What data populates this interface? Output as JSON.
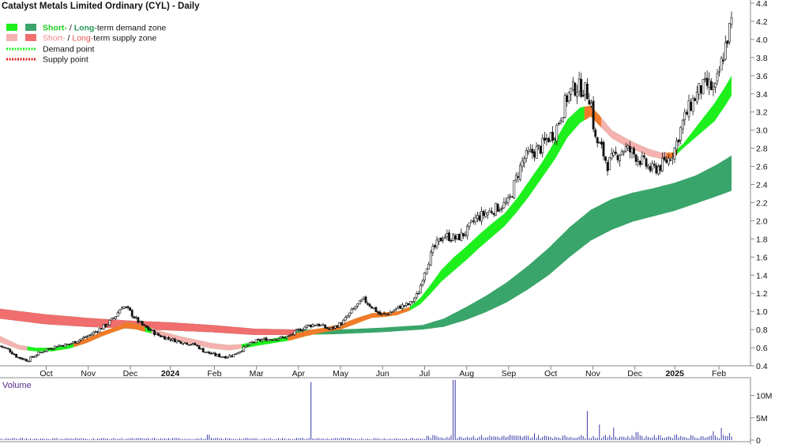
{
  "header": {
    "title": "Catalyst Metals Limited Ordinary (CYL) - Daily"
  },
  "legend": {
    "items": [
      {
        "label_short": "Short-",
        "label_sep": " / ",
        "label_long": "Long-",
        "label_tail": "term demand zone",
        "swatch_short": "#1ef01e",
        "swatch_long": "#3aa56a"
      },
      {
        "label_short": "Short-",
        "label_sep": " / ",
        "label_long": "Long-",
        "label_tail": "term supply zone",
        "swatch_short": "#f6b1b1",
        "swatch_long": "#f06e6e"
      }
    ],
    "demand_point": "Demand point",
    "supply_point": "Supply point",
    "demand_point_color": "#1ef01e",
    "supply_point_color": "#e02020"
  },
  "volume_panel": {
    "label": "Volume",
    "label_color": "#5a2a8a",
    "ticks": [
      "10M",
      "5M",
      "0"
    ],
    "tick_values": [
      10000000,
      5000000,
      0
    ],
    "ylim": [
      0,
      14000000
    ]
  },
  "colors": {
    "short_demand": "#1ef01e",
    "long_demand": "#3aa56a",
    "short_supply": "#f6b1b1",
    "long_supply": "#f06e6e",
    "transition": "#f27a2a",
    "candle": "#111111",
    "volume_bar": "#3a3aa8"
  },
  "chart_data": {
    "type": "candlestick",
    "title": "Catalyst Metals Limited Ordinary (CYL) - Daily",
    "ylim": [
      0.4,
      4.4
    ],
    "y_ticks": [
      "4.4",
      "4.2",
      "4.0",
      "3.8",
      "3.6",
      "3.4",
      "3.2",
      "3.0",
      "2.8",
      "2.6",
      "2.4",
      "2.2",
      "2.0",
      "1.8",
      "1.6",
      "1.4",
      "1.2",
      "1.0",
      "0.8",
      "0.6",
      "0.4"
    ],
    "x_ticks": [
      "Oct",
      "Nov",
      "Dec",
      "2024",
      "Feb",
      "Mar",
      "Apr",
      "May",
      "Jun",
      "Jul",
      "Aug",
      "Sep",
      "Oct",
      "Nov",
      "Dec",
      "2025",
      "Feb"
    ],
    "x_tick_months": [
      0.55,
      1.55,
      2.55,
      3.5,
      4.55,
      5.55,
      6.55,
      7.55,
      8.55,
      9.55,
      10.55,
      11.55,
      12.55,
      13.55,
      14.55,
      15.5,
      16.55
    ],
    "x_range_months": [
      -0.55,
      16.85
    ],
    "close_key": [
      [
        -0.55,
        0.62
      ],
      [
        -0.35,
        0.58
      ],
      [
        -0.15,
        0.5
      ],
      [
        0.1,
        0.46
      ],
      [
        0.3,
        0.52
      ],
      [
        0.55,
        0.58
      ],
      [
        0.8,
        0.62
      ],
      [
        1.1,
        0.64
      ],
      [
        1.3,
        0.68
      ],
      [
        1.55,
        0.73
      ],
      [
        1.8,
        0.8
      ],
      [
        2.0,
        0.86
      ],
      [
        2.2,
        0.95
      ],
      [
        2.35,
        1.06
      ],
      [
        2.5,
        1.02
      ],
      [
        2.65,
        0.93
      ],
      [
        2.85,
        0.84
      ],
      [
        3.0,
        0.8
      ],
      [
        3.2,
        0.74
      ],
      [
        3.45,
        0.7
      ],
      [
        3.7,
        0.67
      ],
      [
        3.9,
        0.65
      ],
      [
        4.1,
        0.63
      ],
      [
        4.3,
        0.56
      ],
      [
        4.55,
        0.52
      ],
      [
        4.8,
        0.5
      ],
      [
        5.0,
        0.52
      ],
      [
        5.2,
        0.58
      ],
      [
        5.45,
        0.66
      ],
      [
        5.7,
        0.69
      ],
      [
        6.0,
        0.7
      ],
      [
        6.3,
        0.72
      ],
      [
        6.5,
        0.78
      ],
      [
        6.75,
        0.84
      ],
      [
        7.0,
        0.86
      ],
      [
        7.3,
        0.8
      ],
      [
        7.6,
        0.88
      ],
      [
        7.9,
        1.05
      ],
      [
        8.1,
        1.13
      ],
      [
        8.3,
        1.05
      ],
      [
        8.5,
        0.96
      ],
      [
        8.7,
        0.98
      ],
      [
        8.95,
        1.05
      ],
      [
        9.2,
        1.08
      ],
      [
        9.4,
        1.2
      ],
      [
        9.55,
        1.45
      ],
      [
        9.75,
        1.68
      ],
      [
        10.0,
        1.84
      ],
      [
        10.3,
        1.8
      ],
      [
        10.55,
        1.88
      ],
      [
        10.75,
        2.02
      ],
      [
        11.0,
        2.08
      ],
      [
        11.3,
        2.15
      ],
      [
        11.55,
        2.2
      ],
      [
        11.75,
        2.5
      ],
      [
        11.9,
        2.68
      ],
      [
        12.1,
        2.75
      ],
      [
        12.3,
        2.8
      ],
      [
        12.5,
        2.92
      ],
      [
        12.65,
        2.98
      ],
      [
        12.8,
        3.18
      ],
      [
        12.95,
        3.38
      ],
      [
        13.15,
        3.48
      ],
      [
        13.35,
        3.45
      ],
      [
        13.5,
        3.35
      ],
      [
        13.6,
        2.9
      ],
      [
        13.75,
        2.8
      ],
      [
        13.9,
        2.62
      ],
      [
        14.1,
        2.72
      ],
      [
        14.3,
        2.8
      ],
      [
        14.5,
        2.75
      ],
      [
        14.75,
        2.64
      ],
      [
        14.95,
        2.56
      ],
      [
        15.15,
        2.6
      ],
      [
        15.35,
        2.68
      ],
      [
        15.5,
        2.8
      ],
      [
        15.7,
        3.1
      ],
      [
        15.9,
        3.3
      ],
      [
        16.1,
        3.45
      ],
      [
        16.3,
        3.5
      ],
      [
        16.45,
        3.42
      ],
      [
        16.6,
        3.72
      ],
      [
        16.75,
        4.02
      ],
      [
        16.85,
        4.18
      ]
    ],
    "zones": {
      "short_term_key": [
        [
          -0.55,
          0.73,
          0.66
        ],
        [
          -0.1,
          0.63,
          0.58
        ],
        [
          0.3,
          0.6,
          0.56
        ],
        [
          0.7,
          0.6,
          0.56
        ],
        [
          1.1,
          0.63,
          0.59
        ],
        [
          1.5,
          0.7,
          0.65
        ],
        [
          1.9,
          0.78,
          0.73
        ],
        [
          2.2,
          0.83,
          0.78
        ],
        [
          2.45,
          0.88,
          0.82
        ],
        [
          2.7,
          0.86,
          0.8
        ],
        [
          2.95,
          0.83,
          0.77
        ],
        [
          3.3,
          0.78,
          0.72
        ],
        [
          3.7,
          0.73,
          0.67
        ],
        [
          4.1,
          0.69,
          0.63
        ],
        [
          4.5,
          0.65,
          0.59
        ],
        [
          4.9,
          0.63,
          0.57
        ],
        [
          5.2,
          0.64,
          0.59
        ],
        [
          5.55,
          0.67,
          0.62
        ],
        [
          5.95,
          0.7,
          0.65
        ],
        [
          6.35,
          0.74,
          0.68
        ],
        [
          6.75,
          0.79,
          0.73
        ],
        [
          7.15,
          0.82,
          0.77
        ],
        [
          7.55,
          0.86,
          0.8
        ],
        [
          7.95,
          0.93,
          0.87
        ],
        [
          8.3,
          0.98,
          0.93
        ],
        [
          8.6,
          0.99,
          0.94
        ],
        [
          8.9,
          1.0,
          0.96
        ],
        [
          9.2,
          1.05,
          1.01
        ],
        [
          9.45,
          1.15,
          1.08
        ],
        [
          9.7,
          1.3,
          1.2
        ],
        [
          9.95,
          1.46,
          1.33
        ],
        [
          10.25,
          1.6,
          1.45
        ],
        [
          10.55,
          1.72,
          1.57
        ],
        [
          10.85,
          1.85,
          1.7
        ],
        [
          11.15,
          1.97,
          1.82
        ],
        [
          11.45,
          2.08,
          1.94
        ],
        [
          11.75,
          2.25,
          2.1
        ],
        [
          12.05,
          2.45,
          2.28
        ],
        [
          12.35,
          2.65,
          2.48
        ],
        [
          12.65,
          2.88,
          2.68
        ],
        [
          12.95,
          3.12,
          2.92
        ],
        [
          13.25,
          3.25,
          3.08
        ],
        [
          13.5,
          3.27,
          3.15
        ],
        [
          13.75,
          3.14,
          3.03
        ],
        [
          14.0,
          3.0,
          2.91
        ],
        [
          14.3,
          2.92,
          2.83
        ],
        [
          14.6,
          2.85,
          2.77
        ],
        [
          14.9,
          2.79,
          2.71
        ],
        [
          15.2,
          2.75,
          2.68
        ],
        [
          15.45,
          2.75,
          2.69
        ],
        [
          15.7,
          2.85,
          2.8
        ],
        [
          15.95,
          3.0,
          2.9
        ],
        [
          16.2,
          3.15,
          3.0
        ],
        [
          16.45,
          3.3,
          3.1
        ],
        [
          16.7,
          3.48,
          3.27
        ],
        [
          16.85,
          3.6,
          3.38
        ]
      ],
      "long_term_key": [
        [
          -0.55,
          1.03,
          0.92
        ],
        [
          0.5,
          0.97,
          0.86
        ],
        [
          1.5,
          0.93,
          0.83
        ],
        [
          2.5,
          0.9,
          0.81
        ],
        [
          3.5,
          0.88,
          0.79
        ],
        [
          4.5,
          0.85,
          0.77
        ],
        [
          5.5,
          0.81,
          0.74
        ],
        [
          6.5,
          0.8,
          0.74
        ],
        [
          7.5,
          0.8,
          0.75
        ],
        [
          8.5,
          0.82,
          0.77
        ],
        [
          9.5,
          0.85,
          0.8
        ],
        [
          10.0,
          0.92,
          0.83
        ],
        [
          10.5,
          1.04,
          0.9
        ],
        [
          11.0,
          1.17,
          0.99
        ],
        [
          11.5,
          1.32,
          1.1
        ],
        [
          12.0,
          1.5,
          1.24
        ],
        [
          12.5,
          1.7,
          1.4
        ],
        [
          13.0,
          1.93,
          1.6
        ],
        [
          13.5,
          2.12,
          1.78
        ],
        [
          14.0,
          2.24,
          1.9
        ],
        [
          14.5,
          2.31,
          1.99
        ],
        [
          15.0,
          2.36,
          2.05
        ],
        [
          15.5,
          2.42,
          2.11
        ],
        [
          16.0,
          2.5,
          2.19
        ],
        [
          16.5,
          2.62,
          2.27
        ],
        [
          16.85,
          2.72,
          2.33
        ]
      ],
      "short_supply_ranges": [
        [
          -0.55,
          0.1
        ],
        [
          3.05,
          5.2
        ],
        [
          13.6,
          15.55
        ]
      ],
      "long_supply_ranges": [
        [
          -0.55,
          6.5
        ]
      ],
      "transition_ranges": [
        [
          1.2,
          2.9
        ],
        [
          6.3,
          9.2
        ],
        [
          13.35,
          13.75
        ],
        [
          15.3,
          15.55
        ]
      ]
    },
    "volume": {
      "base_millions": 0.35,
      "spikes": [
        [
          4.4,
          1.2
        ],
        [
          6.85,
          13.0
        ],
        [
          9.6,
          1.0
        ],
        [
          10.25,
          13.5
        ],
        [
          11.6,
          1.2
        ],
        [
          12.15,
          1.5
        ],
        [
          13.4,
          6.5
        ],
        [
          13.7,
          3.5
        ],
        [
          14.05,
          2.8
        ],
        [
          14.6,
          1.8
        ],
        [
          15.55,
          1.3
        ],
        [
          16.4,
          2.0
        ],
        [
          16.62,
          2.7
        ],
        [
          16.82,
          1.6
        ]
      ]
    }
  }
}
